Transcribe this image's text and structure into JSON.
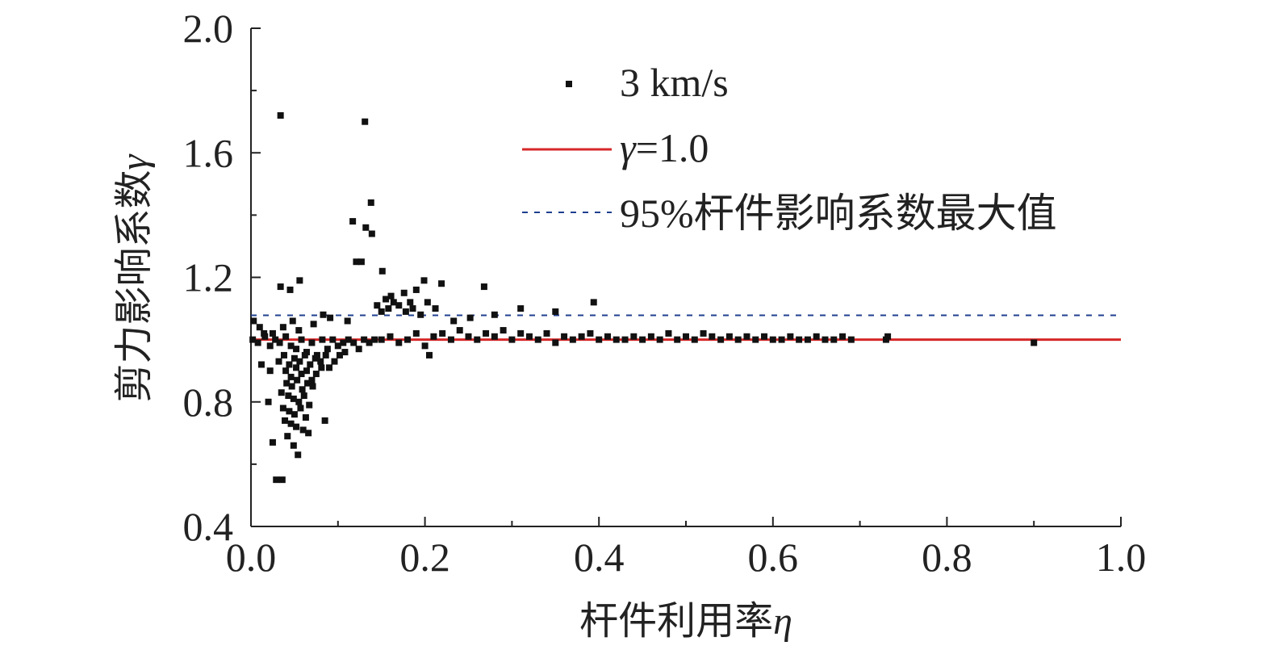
{
  "chart_data": {
    "type": "scatter",
    "xlabel": "杆件利用率",
    "xlabel_symbol": "η",
    "ylabel": "剪力影响系数",
    "ylabel_symbol": "γ",
    "xlim": [
      0.0,
      1.0
    ],
    "ylim": [
      0.4,
      2.0
    ],
    "x_ticks": [
      "0.0",
      "0.2",
      "0.4",
      "0.6",
      "0.8",
      "1.0"
    ],
    "y_ticks": [
      "0.4",
      "0.8",
      "1.2",
      "1.6",
      "2.0"
    ],
    "x_tick_values": [
      0.0,
      0.2,
      0.4,
      0.6,
      0.8,
      1.0
    ],
    "y_tick_values": [
      0.4,
      0.8,
      1.2,
      1.6,
      2.0
    ],
    "grid": false,
    "legend_position": "top-center",
    "legend": {
      "scatter_label": "3 km/s",
      "ref_line_label_symbol": "γ",
      "ref_line_label_value": "=1.0",
      "dashed_line_label": "95%杆件影响系数最大值"
    },
    "reference_lines": [
      {
        "label": "γ=1.0",
        "y": 1.0,
        "style": "solid",
        "color": "#d62728"
      },
      {
        "label": "95%杆件影响系数最大值",
        "y": 1.078,
        "style": "dashed",
        "color": "#1f3f8f"
      }
    ],
    "series": [
      {
        "name": "3 km/s",
        "points": [
          [
            0.034,
            1.72
          ],
          [
            0.131,
            1.7
          ],
          [
            0.138,
            1.44
          ],
          [
            0.117,
            1.38
          ],
          [
            0.132,
            1.36
          ],
          [
            0.139,
            1.34
          ],
          [
            0.121,
            1.25
          ],
          [
            0.127,
            1.25
          ],
          [
            0.151,
            1.22
          ],
          [
            0.056,
            1.19
          ],
          [
            0.034,
            1.17
          ],
          [
            0.045,
            1.16
          ],
          [
            0.268,
            1.17
          ],
          [
            0.219,
            1.18
          ],
          [
            0.199,
            1.19
          ],
          [
            0.19,
            1.16
          ],
          [
            0.176,
            1.15
          ],
          [
            0.161,
            1.14
          ],
          [
            0.183,
            1.12
          ],
          [
            0.17,
            1.11
          ],
          [
            0.158,
            1.1
          ],
          [
            0.203,
            1.12
          ],
          [
            0.212,
            1.1
          ],
          [
            0.195,
            1.08
          ],
          [
            0.15,
            1.09
          ],
          [
            0.164,
            1.12
          ],
          [
            0.186,
            1.1
          ],
          [
            0.155,
            1.13
          ],
          [
            0.178,
            1.09
          ],
          [
            0.145,
            1.11
          ],
          [
            0.394,
            1.12
          ],
          [
            0.31,
            1.1
          ],
          [
            0.35,
            1.09
          ],
          [
            0.28,
            1.08
          ],
          [
            0.252,
            1.07
          ],
          [
            0.233,
            1.06
          ],
          [
            0.037,
            1.04
          ],
          [
            0.025,
            1.02
          ],
          [
            0.055,
            1.03
          ],
          [
            0.048,
            1.06
          ],
          [
            0.072,
            1.05
          ],
          [
            0.083,
            1.08
          ],
          [
            0.091,
            1.07
          ],
          [
            0.111,
            1.06
          ],
          [
            0.003,
            1.06
          ],
          [
            0.01,
            1.04
          ],
          [
            0.015,
            1.02
          ],
          [
            0.002,
            1.0
          ],
          [
            0.008,
            0.99
          ],
          [
            0.016,
            1.01
          ],
          [
            0.022,
            0.98
          ],
          [
            0.028,
            1.0
          ],
          [
            0.033,
            0.99
          ],
          [
            0.04,
            1.01
          ],
          [
            0.046,
            0.98
          ],
          [
            0.052,
            0.97
          ],
          [
            0.058,
            1.0
          ],
          [
            0.064,
            0.96
          ],
          [
            0.07,
            0.99
          ],
          [
            0.076,
            0.95
          ],
          [
            0.082,
            1.0
          ],
          [
            0.088,
            0.97
          ],
          [
            0.094,
            1.0
          ],
          [
            0.1,
            0.98
          ],
          [
            0.106,
            0.99
          ],
          [
            0.112,
            1.0
          ],
          [
            0.118,
            0.99
          ],
          [
            0.124,
            0.97
          ],
          [
            0.13,
            1.0
          ],
          [
            0.136,
            0.99
          ],
          [
            0.142,
            1.0
          ],
          [
            0.032,
            0.93
          ],
          [
            0.038,
            0.95
          ],
          [
            0.044,
            0.92
          ],
          [
            0.05,
            0.94
          ],
          [
            0.056,
            0.93
          ],
          [
            0.062,
            0.95
          ],
          [
            0.068,
            0.92
          ],
          [
            0.074,
            0.94
          ],
          [
            0.08,
            0.93
          ],
          [
            0.086,
            0.95
          ],
          [
            0.04,
            0.9
          ],
          [
            0.046,
            0.88
          ],
          [
            0.052,
            0.91
          ],
          [
            0.058,
            0.89
          ],
          [
            0.064,
            0.9
          ],
          [
            0.07,
            0.87
          ],
          [
            0.041,
            0.86
          ],
          [
            0.047,
            0.85
          ],
          [
            0.053,
            0.87
          ],
          [
            0.059,
            0.84
          ],
          [
            0.065,
            0.86
          ],
          [
            0.071,
            0.85
          ],
          [
            0.035,
            0.83
          ],
          [
            0.043,
            0.82
          ],
          [
            0.049,
            0.81
          ],
          [
            0.055,
            0.8
          ],
          [
            0.061,
            0.82
          ],
          [
            0.067,
            0.79
          ],
          [
            0.037,
            0.78
          ],
          [
            0.044,
            0.77
          ],
          [
            0.05,
            0.76
          ],
          [
            0.057,
            0.78
          ],
          [
            0.063,
            0.75
          ],
          [
            0.039,
            0.74
          ],
          [
            0.046,
            0.73
          ],
          [
            0.052,
            0.72
          ],
          [
            0.06,
            0.71
          ],
          [
            0.066,
            0.7
          ],
          [
            0.085,
            0.74
          ],
          [
            0.042,
            0.69
          ],
          [
            0.049,
            0.66
          ],
          [
            0.054,
            0.63
          ],
          [
            0.029,
            0.55
          ],
          [
            0.036,
            0.55
          ],
          [
            0.025,
            0.67
          ],
          [
            0.02,
            0.8
          ],
          [
            0.022,
            0.9
          ],
          [
            0.012,
            0.92
          ],
          [
            0.09,
            0.91
          ],
          [
            0.096,
            0.93
          ],
          [
            0.102,
            0.95
          ],
          [
            0.108,
            0.96
          ],
          [
            0.075,
            0.89
          ],
          [
            0.081,
            0.91
          ],
          [
            0.15,
            1.0
          ],
          [
            0.16,
            1.01
          ],
          [
            0.17,
            0.99
          ],
          [
            0.18,
            1.0
          ],
          [
            0.19,
            1.02
          ],
          [
            0.2,
            0.98
          ],
          [
            0.205,
            0.95
          ],
          [
            0.21,
            1.01
          ],
          [
            0.22,
            1.02
          ],
          [
            0.23,
            1.0
          ],
          [
            0.24,
            1.03
          ],
          [
            0.25,
            1.01
          ],
          [
            0.26,
            1.0
          ],
          [
            0.27,
            1.02
          ],
          [
            0.28,
            1.01
          ],
          [
            0.29,
            1.03
          ],
          [
            0.3,
            1.0
          ],
          [
            0.31,
            1.02
          ],
          [
            0.32,
            1.01
          ],
          [
            0.33,
            1.0
          ],
          [
            0.34,
            1.02
          ],
          [
            0.35,
            0.99
          ],
          [
            0.36,
            1.01
          ],
          [
            0.37,
            1.0
          ],
          [
            0.38,
            1.01
          ],
          [
            0.39,
            1.02
          ],
          [
            0.4,
            1.0
          ],
          [
            0.41,
            1.01
          ],
          [
            0.42,
            1.0
          ],
          [
            0.43,
            1.0
          ],
          [
            0.44,
            1.01
          ],
          [
            0.45,
            1.0
          ],
          [
            0.46,
            1.01
          ],
          [
            0.47,
            1.0
          ],
          [
            0.48,
            1.02
          ],
          [
            0.49,
            1.0
          ],
          [
            0.5,
            1.01
          ],
          [
            0.51,
            1.0
          ],
          [
            0.52,
            1.02
          ],
          [
            0.53,
            1.01
          ],
          [
            0.54,
            1.0
          ],
          [
            0.55,
            1.01
          ],
          [
            0.56,
            1.0
          ],
          [
            0.57,
            1.01
          ],
          [
            0.58,
            1.0
          ],
          [
            0.59,
            1.01
          ],
          [
            0.6,
            1.0
          ],
          [
            0.61,
            1.0
          ],
          [
            0.62,
            1.01
          ],
          [
            0.63,
            1.0
          ],
          [
            0.64,
            1.0
          ],
          [
            0.65,
            1.01
          ],
          [
            0.66,
            1.0
          ],
          [
            0.67,
            1.0
          ],
          [
            0.68,
            1.01
          ],
          [
            0.69,
            1.0
          ],
          [
            0.73,
            1.0
          ],
          [
            0.732,
            1.01
          ],
          [
            0.9,
            0.99
          ]
        ]
      }
    ]
  }
}
